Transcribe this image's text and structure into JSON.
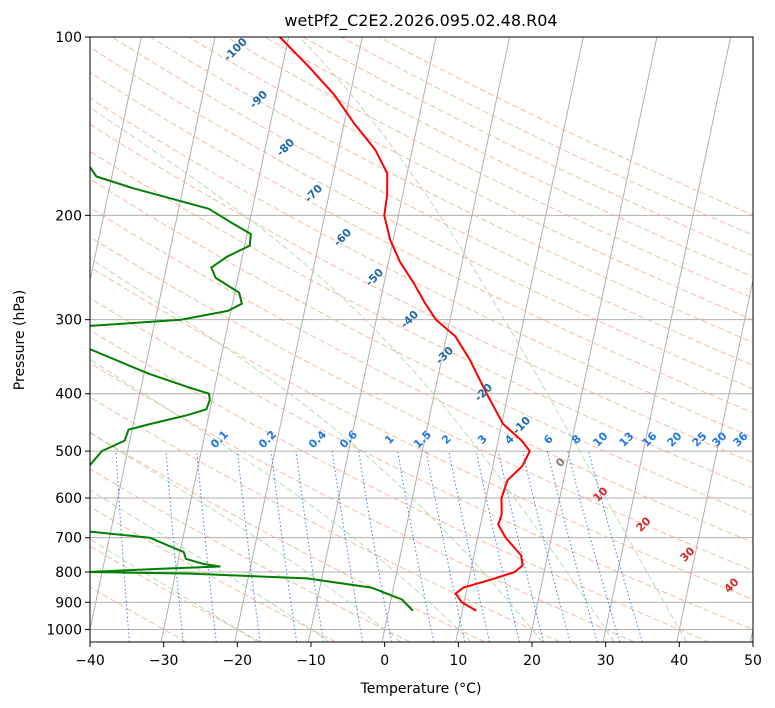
{
  "chart_data": {
    "type": "line",
    "chart_kind": "Skew-T log-P thermodynamic diagram",
    "title": "wetPf2_C2E2.2026.095.02.48.R04",
    "xlabel": "Temperature (°C)",
    "ylabel": "Pressure (hPa)",
    "xlim": [
      -40,
      50
    ],
    "ylim": [
      1050,
      100
    ],
    "y_scale": "log",
    "x_ticks": [
      -40,
      -30,
      -20,
      -10,
      0,
      10,
      20,
      30,
      40,
      50
    ],
    "x_tick_labels": [
      "−40",
      "−30",
      "−20",
      "−10",
      "0",
      "10",
      "20",
      "30",
      "40",
      "50"
    ],
    "y_ticks": [
      1000,
      900,
      800,
      700,
      600,
      500,
      400,
      300,
      200,
      100
    ],
    "y_tick_labels": [
      "1000",
      "900",
      "800",
      "700",
      "600",
      "500",
      "400",
      "300",
      "200",
      "100"
    ],
    "grid": true,
    "series": [
      {
        "role": "temperature",
        "color": "#ff0000",
        "points": [
          [
            930,
            11.9
          ],
          [
            900,
            9.7
          ],
          [
            870,
            8.6
          ],
          [
            850,
            9.5
          ],
          [
            820,
            13.5
          ],
          [
            800,
            16.0
          ],
          [
            780,
            16.9
          ],
          [
            750,
            16.4
          ],
          [
            700,
            13.8
          ],
          [
            665,
            12.4
          ],
          [
            640,
            12.6
          ],
          [
            600,
            12.1
          ],
          [
            560,
            12.4
          ],
          [
            530,
            14.0
          ],
          [
            500,
            14.6
          ],
          [
            480,
            13.2
          ],
          [
            450,
            10.2
          ],
          [
            400,
            7.1
          ],
          [
            350,
            3.8
          ],
          [
            320,
            1.2
          ],
          [
            300,
            -1.9
          ],
          [
            280,
            -4.0
          ],
          [
            260,
            -6.0
          ],
          [
            240,
            -8.4
          ],
          [
            220,
            -10.4
          ],
          [
            200,
            -11.9
          ],
          [
            185,
            -12.1
          ],
          [
            170,
            -12.7
          ],
          [
            155,
            -15.0
          ],
          [
            140,
            -18.6
          ],
          [
            125,
            -22.2
          ],
          [
            112,
            -26.5
          ],
          [
            100,
            -31.2
          ]
        ]
      },
      {
        "role": "dewpoint",
        "color": "#008000",
        "points": [
          [
            930,
            3.3
          ],
          [
            890,
            1.5
          ],
          [
            850,
            -3.0
          ],
          [
            820,
            -12.0
          ],
          [
            805,
            -28.0
          ],
          [
            800,
            -42.0
          ],
          [
            790,
            -32.0
          ],
          [
            783,
            -24.2
          ],
          [
            775,
            -26.5
          ],
          [
            760,
            -29.0
          ],
          [
            740,
            -29.5
          ],
          [
            720,
            -32.0
          ],
          [
            700,
            -34.5
          ],
          [
            670,
            -50.0
          ],
          [
            500,
            -43.5
          ],
          [
            480,
            -40.7
          ],
          [
            460,
            -40.5
          ],
          [
            450,
            -37.7
          ],
          [
            435,
            -33.0
          ],
          [
            425,
            -30.5
          ],
          [
            410,
            -30.3
          ],
          [
            400,
            -30.6
          ],
          [
            390,
            -33.6
          ],
          [
            370,
            -39.4
          ],
          [
            330,
            -49.8
          ],
          [
            310,
            -53.0
          ],
          [
            300,
            -36.5
          ],
          [
            290,
            -30.4
          ],
          [
            282,
            -28.7
          ],
          [
            270,
            -29.4
          ],
          [
            255,
            -33.0
          ],
          [
            245,
            -33.9
          ],
          [
            235,
            -32.1
          ],
          [
            225,
            -29.3
          ],
          [
            215,
            -29.5
          ],
          [
            205,
            -32.7
          ],
          [
            195,
            -35.9
          ],
          [
            180,
            -46.8
          ],
          [
            172,
            -52.1
          ],
          [
            165,
            -53.4
          ],
          [
            160,
            -57.1
          ],
          [
            152,
            -59.9
          ],
          [
            145,
            -61.2
          ],
          [
            130,
            -60.2
          ],
          [
            115,
            -67.0
          ],
          [
            108,
            -71.3
          ],
          [
            100,
            -75.1
          ]
        ]
      }
    ],
    "dry_adiabats_c": [
      -30,
      -20,
      -10,
      0,
      10,
      20,
      30,
      40,
      50,
      60,
      70,
      80,
      90,
      100,
      110,
      120,
      130,
      140,
      150,
      160,
      170,
      180,
      190,
      200,
      210,
      220
    ],
    "moist_adiabats_c": [
      -20,
      -10,
      0,
      10,
      20,
      30,
      40
    ],
    "mixing_ratio_labels": [
      "0.1",
      "0.2",
      "0.4",
      "0.6",
      "1",
      "1.5",
      "2",
      "3",
      "4",
      "6",
      "8",
      "10",
      "13",
      "16",
      "20",
      "25",
      "30",
      "36"
    ],
    "mixing_ratio_values": [
      0.1,
      0.2,
      0.4,
      0.6,
      1,
      1.5,
      2,
      3,
      4,
      6,
      8,
      10,
      13,
      16,
      20,
      25,
      30,
      36
    ],
    "dark_blue_labels": [
      "-100",
      "-90",
      "-80",
      "-70",
      "-60",
      "-50",
      "-40",
      "-30",
      "-20",
      "-10"
    ],
    "dark_blue_values": [
      -100,
      -90,
      -80,
      -70,
      -60,
      -50,
      -40,
      -30,
      -20,
      -10
    ],
    "red_labels": [
      "10",
      "20",
      "30",
      "40"
    ],
    "red_values": [
      10,
      20,
      30,
      40
    ],
    "gray_label": "0",
    "colors": {
      "isotherm": "#b0b0b0",
      "isobar": "#b0b0b0",
      "dry_adiabat": "#f4a582",
      "moist_adiabat": "#a6d4a6",
      "mixing_ratio": "#1f77e4",
      "dark_label": "#1f6aa5",
      "red_label": "#d62728",
      "gray_label": "#808080"
    }
  }
}
